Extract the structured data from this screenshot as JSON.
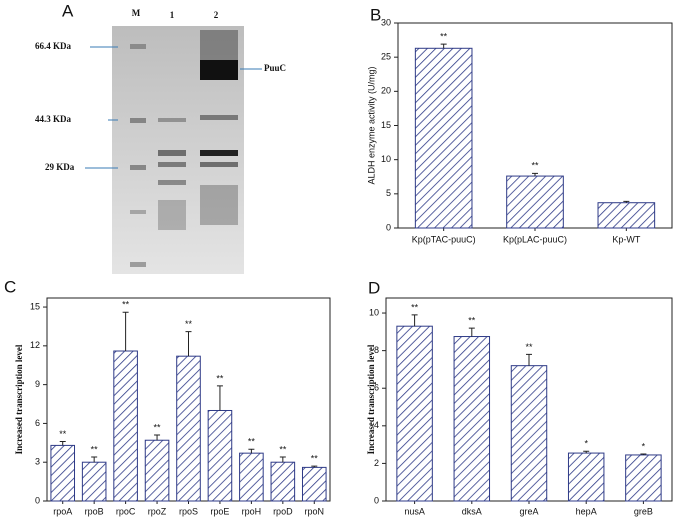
{
  "gel": {
    "panel_label": "A",
    "lanes": [
      "M",
      "1",
      "2"
    ],
    "markers": [
      "66.4 KDa",
      "44.3 KDa",
      "29 KDa"
    ],
    "band": "PuuC"
  },
  "chart_data": [
    {
      "type": "bar",
      "panel_label": "B",
      "y_label": "ALDH enzyme activity (U/mg)",
      "categories": [
        "Kp(pTAC-puuC)",
        "Kp(pLAC-puuC)",
        "Kp-WT"
      ],
      "values": [
        26.3,
        7.6,
        3.7
      ],
      "errors": [
        0.6,
        0.4,
        0.2
      ],
      "annotations": [
        "**",
        "**",
        null
      ],
      "color": "#2e3a87",
      "ylim": [
        0,
        30
      ],
      "yticks": [
        0,
        5,
        10,
        15,
        20,
        25,
        30
      ]
    },
    {
      "type": "bar",
      "panel_label": "C",
      "y_label": "Increased transcription level",
      "categories": [
        "rpoA",
        "rpoB",
        "rpoC",
        "rpoZ",
        "rpoS",
        "rpoE",
        "rpoH",
        "rpoD",
        "rpoN"
      ],
      "values": [
        4.3,
        3.0,
        11.6,
        4.7,
        11.2,
        7.0,
        3.7,
        3.0,
        2.6
      ],
      "errors": [
        0.3,
        0.4,
        3.0,
        0.4,
        1.9,
        1.9,
        0.3,
        0.4,
        0.1
      ],
      "annotations": [
        "**",
        "**",
        "**",
        "**",
        "**",
        "**",
        "**",
        "**",
        "**"
      ],
      "color": "#2e3a87",
      "ylim": [
        0,
        15.7
      ],
      "yticks": [
        0,
        3,
        6,
        9,
        12,
        15
      ]
    },
    {
      "type": "bar",
      "panel_label": "D",
      "y_label": "Increased transcription level",
      "categories": [
        "nusA",
        "dksA",
        "greA",
        "hepA",
        "greB"
      ],
      "values": [
        9.3,
        8.75,
        7.2,
        2.55,
        2.45
      ],
      "errors": [
        0.6,
        0.45,
        0.6,
        0.1,
        0.05
      ],
      "annotations": [
        "**",
        "**",
        "**",
        "*",
        "*"
      ],
      "color": "#2e3a87",
      "ylim": [
        0,
        10.8
      ],
      "yticks": [
        0,
        2,
        4,
        6,
        8,
        10
      ]
    }
  ]
}
